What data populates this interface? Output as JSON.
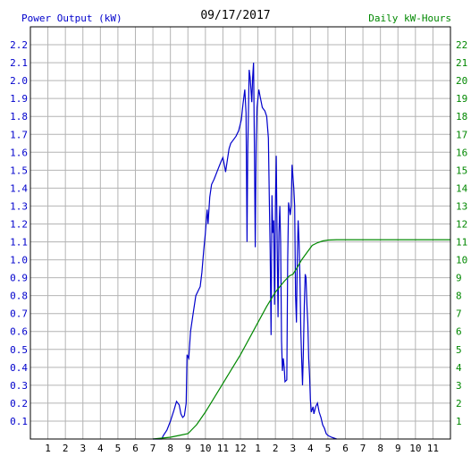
{
  "header": {
    "left_title": "Power Output (kW)",
    "date": "09/17/2017",
    "right_title": "Daily kW-Hours"
  },
  "colors": {
    "power": "#0000cc",
    "energy": "#008800",
    "grid": "#b4b4b4",
    "frame": "#000000"
  },
  "chart_data": {
    "type": "line",
    "x_ticks": [
      "1",
      "2",
      "3",
      "4",
      "5",
      "6",
      "7",
      "8",
      "9",
      "10",
      "11",
      "12",
      "1",
      "2",
      "3",
      "4",
      "5",
      "6",
      "7",
      "8",
      "9",
      "10",
      "11"
    ],
    "xlim": [
      0,
      24
    ],
    "left_axis": {
      "ticks": [
        "0.1",
        "0.2",
        "0.3",
        "0.4",
        "0.5",
        "0.6",
        "0.7",
        "0.8",
        "0.9",
        "1.0",
        "1.1",
        "1.2",
        "1.3",
        "1.4",
        "1.5",
        "1.6",
        "1.7",
        "1.8",
        "1.9",
        "2.0",
        "2.1",
        "2.2"
      ],
      "ylim": [
        0,
        2.3
      ]
    },
    "right_axis": {
      "ticks": [
        "1",
        "2",
        "3",
        "4",
        "5",
        "6",
        "7",
        "8",
        "9",
        "10",
        "11",
        "12",
        "13",
        "14",
        "15",
        "16",
        "17",
        "18",
        "19",
        "20",
        "21",
        "22"
      ],
      "ylim": [
        0,
        23
      ]
    },
    "grid": true,
    "series": [
      {
        "axis": "left",
        "points": [
          [
            7.0,
            0
          ],
          [
            7.5,
            0
          ],
          [
            7.6,
            0.02
          ],
          [
            7.8,
            0.05
          ],
          [
            8.0,
            0.1
          ],
          [
            8.2,
            0.16
          ],
          [
            8.35,
            0.21
          ],
          [
            8.5,
            0.19
          ],
          [
            8.6,
            0.14
          ],
          [
            8.7,
            0.12
          ],
          [
            8.8,
            0.13
          ],
          [
            8.9,
            0.2
          ],
          [
            8.95,
            0.47
          ],
          [
            9.05,
            0.45
          ],
          [
            9.15,
            0.6
          ],
          [
            9.3,
            0.7
          ],
          [
            9.45,
            0.8
          ],
          [
            9.6,
            0.83
          ],
          [
            9.7,
            0.85
          ],
          [
            9.8,
            0.93
          ],
          [
            9.9,
            1.05
          ],
          [
            10.0,
            1.15
          ],
          [
            10.1,
            1.28
          ],
          [
            10.15,
            1.2
          ],
          [
            10.25,
            1.35
          ],
          [
            10.35,
            1.42
          ],
          [
            10.5,
            1.45
          ],
          [
            10.7,
            1.5
          ],
          [
            10.9,
            1.55
          ],
          [
            11.0,
            1.57
          ],
          [
            11.1,
            1.52
          ],
          [
            11.15,
            1.49
          ],
          [
            11.2,
            1.52
          ],
          [
            11.35,
            1.62
          ],
          [
            11.45,
            1.65
          ],
          [
            11.6,
            1.67
          ],
          [
            11.75,
            1.69
          ],
          [
            11.9,
            1.72
          ],
          [
            12.05,
            1.78
          ],
          [
            12.15,
            1.87
          ],
          [
            12.25,
            1.95
          ],
          [
            12.32,
            1.82
          ],
          [
            12.38,
            1.1
          ],
          [
            12.42,
            1.6
          ],
          [
            12.5,
            2.06
          ],
          [
            12.55,
            2.02
          ],
          [
            12.6,
            1.95
          ],
          [
            12.65,
            1.88
          ],
          [
            12.7,
            2.02
          ],
          [
            12.75,
            2.1
          ],
          [
            12.8,
            1.6
          ],
          [
            12.85,
            1.07
          ],
          [
            12.9,
            1.65
          ],
          [
            12.95,
            1.85
          ],
          [
            13.05,
            1.95
          ],
          [
            13.15,
            1.9
          ],
          [
            13.25,
            1.85
          ],
          [
            13.4,
            1.83
          ],
          [
            13.5,
            1.8
          ],
          [
            13.6,
            1.68
          ],
          [
            13.65,
            1.35
          ],
          [
            13.7,
            1.05
          ],
          [
            13.75,
            0.58
          ],
          [
            13.8,
            1.36
          ],
          [
            13.85,
            1.15
          ],
          [
            13.9,
            1.22
          ],
          [
            13.95,
            0.75
          ],
          [
            14.0,
            1.3
          ],
          [
            14.05,
            1.58
          ],
          [
            14.1,
            1.1
          ],
          [
            14.15,
            0.68
          ],
          [
            14.2,
            1.15
          ],
          [
            14.25,
            1.3
          ],
          [
            14.3,
            1.1
          ],
          [
            14.35,
            0.55
          ],
          [
            14.4,
            0.38
          ],
          [
            14.45,
            0.45
          ],
          [
            14.5,
            0.4
          ],
          [
            14.55,
            0.32
          ],
          [
            14.65,
            0.33
          ],
          [
            14.7,
            1.0
          ],
          [
            14.75,
            1.32
          ],
          [
            14.85,
            1.25
          ],
          [
            14.9,
            1.3
          ],
          [
            14.95,
            1.53
          ],
          [
            15.05,
            1.4
          ],
          [
            15.1,
            1.3
          ],
          [
            15.15,
            0.8
          ],
          [
            15.2,
            0.65
          ],
          [
            15.25,
            1.0
          ],
          [
            15.3,
            1.22
          ],
          [
            15.35,
            1.1
          ],
          [
            15.4,
            0.9
          ],
          [
            15.45,
            0.6
          ],
          [
            15.5,
            0.45
          ],
          [
            15.55,
            0.3
          ],
          [
            15.6,
            0.5
          ],
          [
            15.65,
            0.75
          ],
          [
            15.7,
            0.92
          ],
          [
            15.75,
            0.9
          ],
          [
            15.8,
            0.75
          ],
          [
            15.85,
            0.65
          ],
          [
            15.9,
            0.45
          ],
          [
            15.95,
            0.35
          ],
          [
            16.0,
            0.22
          ],
          [
            16.05,
            0.15
          ],
          [
            16.15,
            0.18
          ],
          [
            16.2,
            0.14
          ],
          [
            16.3,
            0.18
          ],
          [
            16.4,
            0.2
          ],
          [
            16.5,
            0.15
          ],
          [
            16.6,
            0.12
          ],
          [
            16.7,
            0.08
          ],
          [
            16.8,
            0.06
          ],
          [
            16.9,
            0.03
          ],
          [
            17.0,
            0.02
          ],
          [
            17.2,
            0.01
          ],
          [
            17.5,
            0
          ]
        ]
      },
      {
        "axis": "right",
        "points": [
          [
            7.0,
            0
          ],
          [
            8.0,
            0.1
          ],
          [
            8.5,
            0.2
          ],
          [
            9.0,
            0.3
          ],
          [
            9.5,
            0.8
          ],
          [
            10.0,
            1.5
          ],
          [
            10.5,
            2.3
          ],
          [
            11.0,
            3.1
          ],
          [
            11.5,
            3.9
          ],
          [
            12.0,
            4.7
          ],
          [
            12.5,
            5.6
          ],
          [
            13.0,
            6.5
          ],
          [
            13.5,
            7.4
          ],
          [
            14.0,
            8.2
          ],
          [
            14.5,
            8.8
          ],
          [
            14.8,
            9.1
          ],
          [
            15.0,
            9.2
          ],
          [
            15.2,
            9.5
          ],
          [
            15.5,
            10.0
          ],
          [
            15.8,
            10.4
          ],
          [
            16.1,
            10.8
          ],
          [
            16.4,
            10.95
          ],
          [
            16.7,
            11.05
          ],
          [
            17.0,
            11.1
          ],
          [
            17.5,
            11.12
          ],
          [
            18.0,
            11.12
          ],
          [
            24.0,
            11.12
          ]
        ]
      }
    ]
  }
}
